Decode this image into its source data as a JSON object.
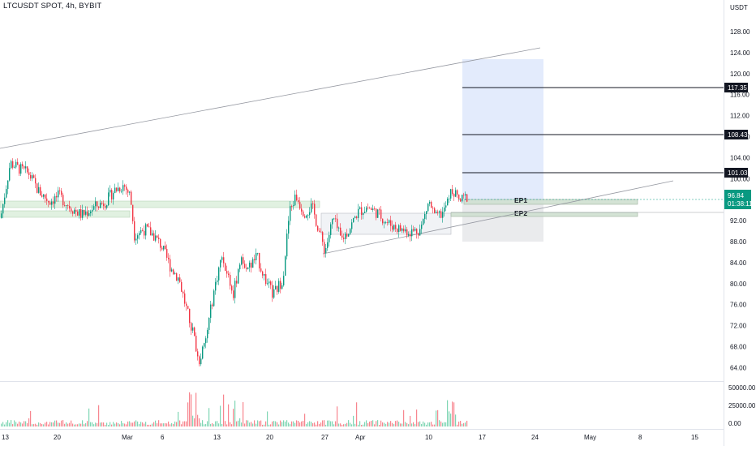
{
  "header": {
    "title": "LTCUSDT SPOT, 4h, BYBIT"
  },
  "price_axis": {
    "currency": "USDT",
    "ticks": [
      "128.00",
      "124.00",
      "120.00",
      "116.00",
      "112.00",
      "108.00",
      "104.00",
      "100.00",
      "96.00",
      "92.00",
      "88.00",
      "84.00",
      "80.00",
      "76.00",
      "72.00",
      "68.00",
      "64.00"
    ]
  },
  "volume_axis": {
    "ticks": [
      "50000.00",
      "25000.00",
      "0.00"
    ]
  },
  "time_axis": {
    "labels": [
      "13",
      "20",
      "Mar",
      "6",
      "13",
      "20",
      "27",
      "Apr",
      "10",
      "17",
      "24",
      "May",
      "8",
      "15"
    ]
  },
  "levels": [
    {
      "label": "117.35"
    },
    {
      "label": "108.43"
    },
    {
      "label": "101.03"
    }
  ],
  "current_price": {
    "value": "96.84",
    "countdown": "01:38:11",
    "color": "#089981"
  },
  "zones": [
    {
      "label": "EP1"
    },
    {
      "label": "EP2"
    }
  ],
  "colors": {
    "up": "#089981",
    "down": "#f23645",
    "vol_up": "#7fd6b4",
    "vol_down": "#f7868f",
    "target_box": "#d9e4fb",
    "stop_box": "#e6e7ea",
    "zone": "#c8e6c9"
  },
  "chart_data": {
    "type": "candlestick",
    "symbol": "LTCUSDT",
    "timeframe": "4h",
    "exchange": "BYBIT",
    "y_unit": "USDT",
    "ylim": [
      62,
      131
    ],
    "anchors": [
      {
        "x": 0,
        "close": 93
      },
      {
        "x": 6,
        "close": 98
      },
      {
        "x": 12,
        "close": 103
      },
      {
        "x": 22,
        "close": 102
      },
      {
        "x": 35,
        "close": 101
      },
      {
        "x": 46,
        "close": 98
      },
      {
        "x": 60,
        "close": 96
      },
      {
        "x": 72,
        "close": 97
      },
      {
        "x": 86,
        "close": 95
      },
      {
        "x": 100,
        "close": 93.5
      },
      {
        "x": 116,
        "close": 95
      },
      {
        "x": 130,
        "close": 96
      },
      {
        "x": 140,
        "close": 98
      },
      {
        "x": 152,
        "close": 99
      },
      {
        "x": 160,
        "close": 97
      },
      {
        "x": 165,
        "close": 90
      },
      {
        "x": 178,
        "close": 91
      },
      {
        "x": 188,
        "close": 90
      },
      {
        "x": 198,
        "close": 88
      },
      {
        "x": 210,
        "close": 84
      },
      {
        "x": 220,
        "close": 82
      },
      {
        "x": 230,
        "close": 76
      },
      {
        "x": 238,
        "close": 72
      },
      {
        "x": 244,
        "close": 67
      },
      {
        "x": 252,
        "close": 70
      },
      {
        "x": 262,
        "close": 79
      },
      {
        "x": 272,
        "close": 86
      },
      {
        "x": 280,
        "close": 83
      },
      {
        "x": 287,
        "close": 79
      },
      {
        "x": 296,
        "close": 86
      },
      {
        "x": 306,
        "close": 84
      },
      {
        "x": 316,
        "close": 86
      },
      {
        "x": 326,
        "close": 82
      },
      {
        "x": 336,
        "close": 79
      },
      {
        "x": 348,
        "close": 82
      },
      {
        "x": 356,
        "close": 94
      },
      {
        "x": 364,
        "close": 97
      },
      {
        "x": 374,
        "close": 94
      },
      {
        "x": 384,
        "close": 95
      },
      {
        "x": 392,
        "close": 91
      },
      {
        "x": 400,
        "close": 87
      },
      {
        "x": 410,
        "close": 93
      },
      {
        "x": 420,
        "close": 89
      },
      {
        "x": 430,
        "close": 91
      },
      {
        "x": 440,
        "close": 94
      },
      {
        "x": 452,
        "close": 95
      },
      {
        "x": 464,
        "close": 94
      },
      {
        "x": 478,
        "close": 92
      },
      {
        "x": 492,
        "close": 91
      },
      {
        "x": 506,
        "close": 90.5
      },
      {
        "x": 518,
        "close": 91
      },
      {
        "x": 528,
        "close": 96
      },
      {
        "x": 536,
        "close": 93
      },
      {
        "x": 546,
        "close": 94
      },
      {
        "x": 556,
        "close": 98
      },
      {
        "x": 566,
        "close": 96
      },
      {
        "x": 575,
        "close": 96.84
      }
    ]
  }
}
